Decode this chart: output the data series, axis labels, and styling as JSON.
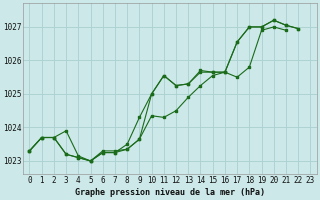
{
  "title": "Graphe pression niveau de la mer (hPa)",
  "background_color": "#cce8e8",
  "grid_color": "#aacfcf",
  "line_color": "#1a6b1a",
  "x_ticks": [
    0,
    1,
    2,
    3,
    4,
    5,
    6,
    7,
    8,
    9,
    10,
    11,
    12,
    13,
    14,
    15,
    16,
    17,
    18,
    19,
    20,
    21,
    22,
    23
  ],
  "y_ticks": [
    1023,
    1024,
    1025,
    1026,
    1027
  ],
  "ylim": [
    1022.6,
    1027.7
  ],
  "xlim": [
    -0.5,
    23.5
  ],
  "x_max": [
    0,
    1,
    2,
    3,
    4,
    5,
    6,
    7,
    8,
    9,
    10,
    11,
    12,
    13,
    14,
    15,
    16,
    17,
    18,
    19,
    20,
    21,
    22
  ],
  "y_max": [
    1023.3,
    1023.7,
    1023.7,
    1023.9,
    1023.15,
    1023.0,
    1023.3,
    1023.3,
    1023.35,
    1023.65,
    1025.0,
    1025.55,
    1025.25,
    1025.3,
    1025.7,
    1025.65,
    1025.65,
    1026.55,
    1027.0,
    1027.0,
    1027.2,
    1027.05,
    1026.95
  ],
  "x_min": [
    0,
    1,
    2,
    3,
    4,
    5,
    6,
    7,
    8,
    9,
    10,
    11,
    12,
    13,
    14,
    15,
    16,
    17,
    18,
    19,
    20,
    21
  ],
  "y_min": [
    1023.3,
    1023.7,
    1023.7,
    1023.2,
    1023.1,
    1023.0,
    1023.25,
    1023.25,
    1023.35,
    1023.65,
    1024.35,
    1024.3,
    1024.5,
    1024.9,
    1025.25,
    1025.55,
    1025.65,
    1025.5,
    1025.8,
    1026.9,
    1027.0,
    1026.9
  ],
  "x_avg": [
    0,
    1,
    2,
    3,
    4,
    5,
    6,
    7,
    8,
    9,
    10,
    11,
    12,
    13,
    14,
    15,
    16,
    17,
    18,
    19,
    20,
    21,
    22
  ],
  "y_avg": [
    1023.3,
    1023.7,
    1023.7,
    1023.2,
    1023.1,
    1023.0,
    1023.25,
    1023.25,
    1023.5,
    1024.3,
    1025.0,
    1025.55,
    1025.25,
    1025.3,
    1025.65,
    1025.65,
    1025.65,
    1026.55,
    1027.0,
    1027.0,
    1027.2,
    1027.05,
    1026.95
  ],
  "ylabel_fontsize": 5.5,
  "xlabel_fontsize": 5.5,
  "title_fontsize": 6.0
}
